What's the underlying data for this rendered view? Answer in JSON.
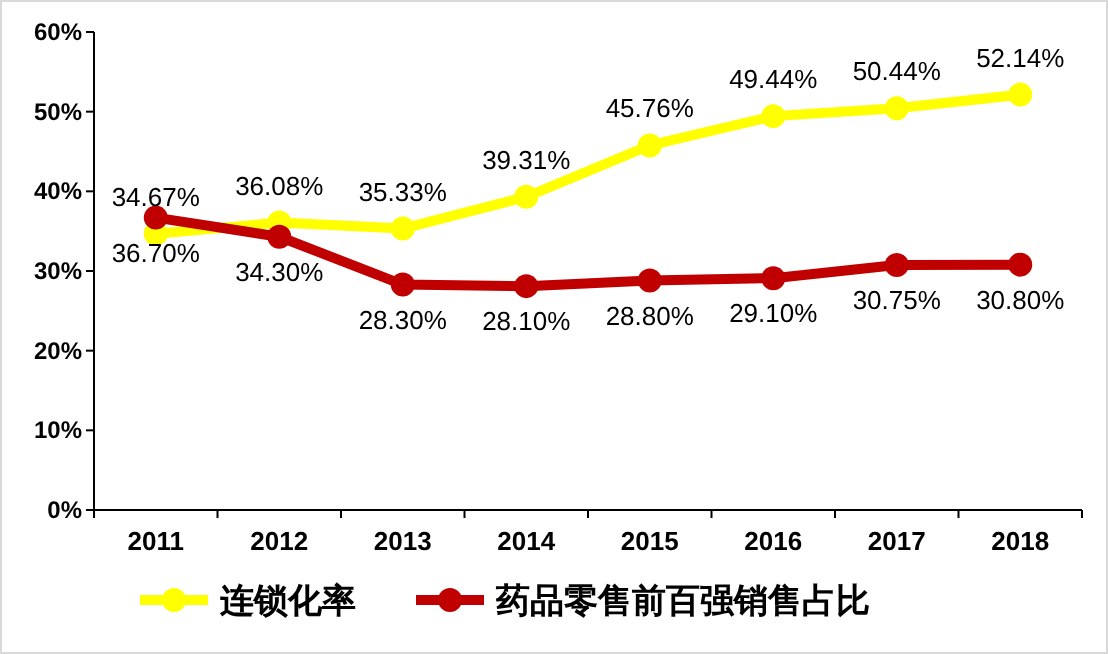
{
  "chart_data": {
    "type": "line",
    "categories": [
      "2011",
      "2012",
      "2013",
      "2014",
      "2015",
      "2016",
      "2017",
      "2018"
    ],
    "ylim": [
      0,
      60
    ],
    "yticks": [
      {
        "value": 0,
        "label": "0%"
      },
      {
        "value": 10,
        "label": "10%"
      },
      {
        "value": 20,
        "label": "20%"
      },
      {
        "value": 30,
        "label": "30%"
      },
      {
        "value": 40,
        "label": "40%"
      },
      {
        "value": 50,
        "label": "50%"
      },
      {
        "value": 60,
        "label": "60%"
      }
    ],
    "marker": "circle",
    "legend": "bottom",
    "grid": false,
    "series": [
      {
        "name": "连锁化率",
        "color": "#ffff00",
        "values": [
          34.67,
          36.08,
          35.33,
          39.31,
          45.76,
          49.44,
          50.44,
          52.14
        ],
        "value_labels": [
          "34.67%",
          "36.08%",
          "35.33%",
          "39.31%",
          "45.76%",
          "49.44%",
          "50.44%",
          "52.14%"
        ]
      },
      {
        "name": "药品零售前百强销售占比",
        "color": "#c00000",
        "values": [
          36.7,
          34.3,
          28.3,
          28.1,
          28.8,
          29.1,
          30.75,
          30.8
        ],
        "value_labels": [
          "36.70%",
          "34.30%",
          "28.30%",
          "28.10%",
          "28.80%",
          "29.10%",
          "30.75%",
          "30.80%"
        ]
      }
    ]
  }
}
